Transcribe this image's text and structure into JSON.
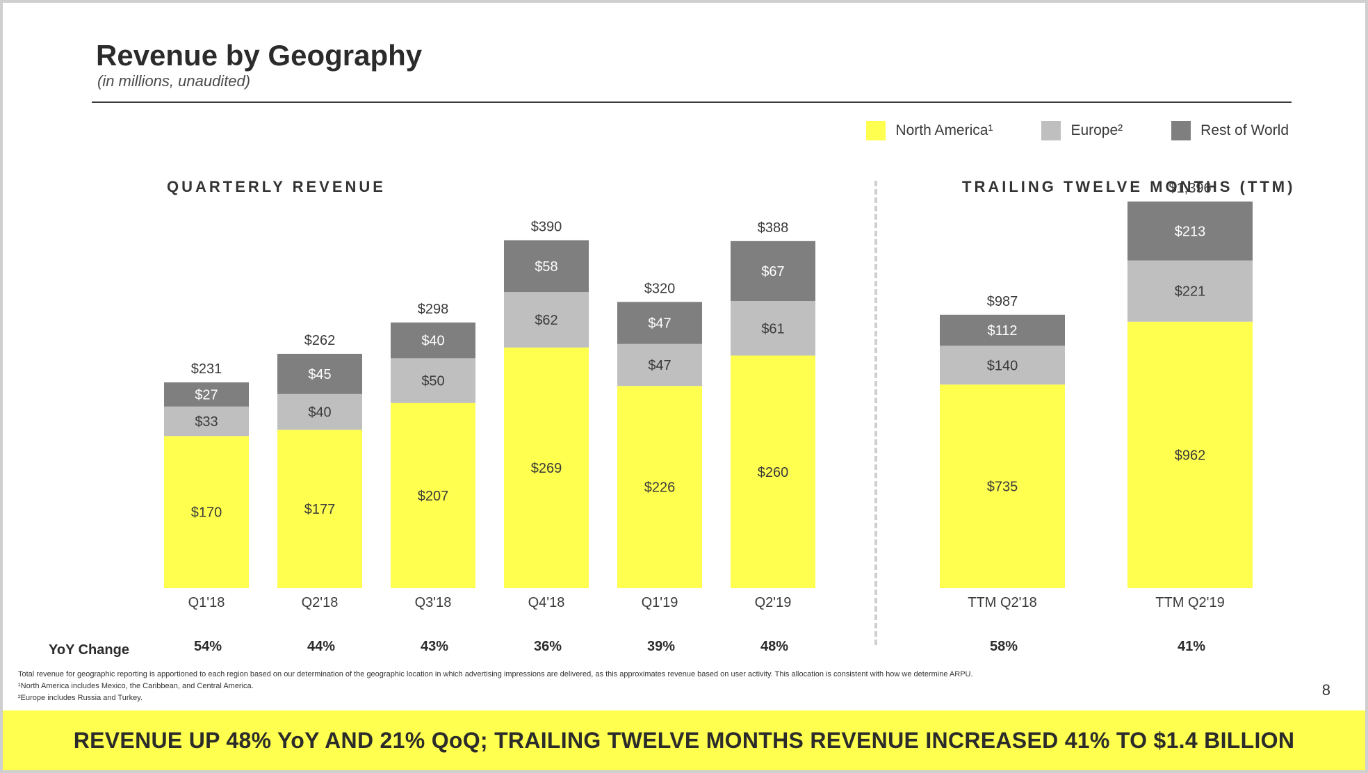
{
  "slide": {
    "title": "Revenue by Geography",
    "subtitle": "(in millions, unaudited)",
    "page_number": "8",
    "yoy_label": "YoY Change",
    "banner": "REVENUE UP 48% YoY AND 21% QoQ; TRAILING TWELVE MONTHS REVENUE INCREASED 41% TO $1.4 BILLION",
    "footnotes": [
      "Total revenue for geographic reporting is apportioned to each region based on our determination of the geographic location in which advertising impressions are delivered, as this approximates revenue based on user activity.  This allocation is consistent with how we determine ARPU.",
      "¹North America includes Mexico, the Caribbean, and Central America.",
      "²Europe includes Russia and Turkey."
    ]
  },
  "legend": [
    {
      "label": "North America¹",
      "color": "#FFFF4F"
    },
    {
      "label": "Europe²",
      "color": "#BFBFBF"
    },
    {
      "label": "Rest of World",
      "color": "#7F7F7F"
    }
  ],
  "chart_data": [
    {
      "type": "bar",
      "stacked": true,
      "title": "QUARTERLY REVENUE",
      "categories": [
        "Q1'18",
        "Q2'18",
        "Q3'18",
        "Q4'18",
        "Q1'19",
        "Q2'19"
      ],
      "series": [
        {
          "name": "North America¹",
          "color": "#FFFF4F",
          "values": [
            170,
            177,
            207,
            269,
            226,
            260
          ],
          "labels": [
            "$170",
            "$177",
            "$207",
            "$269",
            "$226",
            "$260"
          ]
        },
        {
          "name": "Europe²",
          "color": "#BFBFBF",
          "values": [
            33,
            40,
            50,
            62,
            47,
            61
          ],
          "labels": [
            "$33",
            "$40",
            "$50",
            "$62",
            "$47",
            "$61"
          ]
        },
        {
          "name": "Rest of World",
          "color": "#7F7F7F",
          "values": [
            27,
            45,
            40,
            58,
            47,
            67
          ],
          "labels": [
            "$27",
            "$45",
            "$40",
            "$58",
            "$47",
            "$67"
          ]
        }
      ],
      "totals": [
        231,
        262,
        298,
        390,
        320,
        388
      ],
      "total_labels": [
        "$231",
        "$262",
        "$298",
        "$390",
        "$320",
        "$388"
      ],
      "yoy_change": [
        "54%",
        "44%",
        "43%",
        "36%",
        "39%",
        "48%"
      ],
      "xlabel": "",
      "ylabel": "",
      "ylim": [
        0,
        420
      ]
    },
    {
      "type": "bar",
      "stacked": true,
      "title": "TRAILING TWELVE MONTHS (TTM)",
      "categories": [
        "TTM Q2'18",
        "TTM Q2'19"
      ],
      "series": [
        {
          "name": "North America¹",
          "color": "#FFFF4F",
          "values": [
            735,
            962
          ],
          "labels": [
            "$735",
            "$962"
          ]
        },
        {
          "name": "Europe²",
          "color": "#BFBFBF",
          "values": [
            140,
            221
          ],
          "labels": [
            "$140",
            "$221"
          ]
        },
        {
          "name": "Rest of World",
          "color": "#7F7F7F",
          "values": [
            112,
            213
          ],
          "labels": [
            "$112",
            "$213"
          ]
        }
      ],
      "totals": [
        987,
        1396
      ],
      "total_labels": [
        "$987",
        "$1,396"
      ],
      "yoy_change": [
        "58%",
        "41%"
      ],
      "xlabel": "",
      "ylabel": "",
      "ylim": [
        0,
        1480
      ]
    }
  ]
}
